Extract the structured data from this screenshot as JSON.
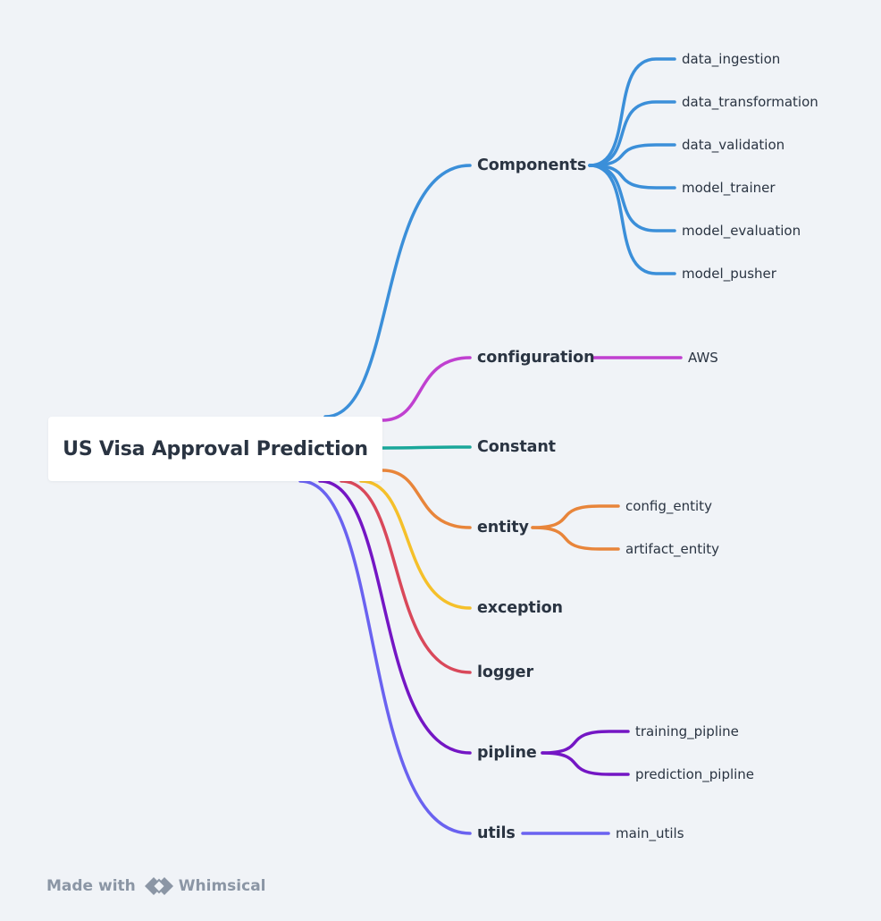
{
  "diagram": {
    "root": "US Visa Approval Prediction",
    "branches": [
      {
        "label": "Components",
        "color": "#3b8fd9",
        "children": [
          "data_ingestion",
          "data_transformation",
          "data_validation",
          "model_trainer",
          "model_evaluation",
          "model_pusher"
        ]
      },
      {
        "label": "configuration",
        "color": "#c040d0",
        "children": [
          "AWS"
        ]
      },
      {
        "label": "Constant",
        "color": "#1aa79a",
        "children": []
      },
      {
        "label": "entity",
        "color": "#e8853a",
        "children": [
          "config_entity",
          "artifact_entity"
        ]
      },
      {
        "label": "exception",
        "color": "#f5c02a",
        "children": []
      },
      {
        "label": "logger",
        "color": "#d9485a",
        "children": []
      },
      {
        "label": "pipline",
        "color": "#7416c4",
        "children": [
          "training_pipline",
          "prediction_pipline"
        ]
      },
      {
        "label": "utils",
        "color": "#6a62f0",
        "children": [
          "main_utils"
        ]
      }
    ]
  },
  "footer": {
    "made_with": "Made with",
    "brand": "Whimsical"
  }
}
